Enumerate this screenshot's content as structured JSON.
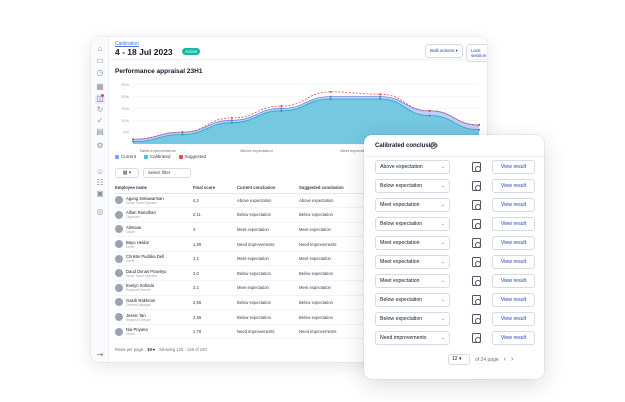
{
  "header": {
    "breadcrumb": "Calibration",
    "date_range": "4 - 18 Jul 2023",
    "status_badge": "Active",
    "bulk_actions_label": "Bulk actions",
    "lock_session_label": "Lock session"
  },
  "rail_icons": [
    "home-icon",
    "inbox-icon",
    "clock-icon",
    "grid-icon",
    "calibration-icon",
    "refresh-icon",
    "check-icon",
    "chart-icon",
    "settings-icon",
    "people-icon",
    "team-icon",
    "docs-icon",
    "support-icon",
    "collapse-icon"
  ],
  "chart_data": {
    "type": "area",
    "title": "Performance appraisal 23H1",
    "categories": [
      "Need improvements",
      "Below expectation",
      "Meet expectation",
      "Above expectation"
    ],
    "y_ticks": [
      "25%",
      "20%",
      "15%",
      "10%",
      "5%"
    ],
    "ylim": [
      0,
      27
    ],
    "x": [
      0,
      0.5,
      1,
      1.5,
      2,
      2.5,
      3,
      3.5
    ],
    "series": [
      {
        "name": "Current",
        "color": "#7aa2f0",
        "values": [
          2,
          5,
          10,
          15,
          20,
          20,
          14,
          8
        ]
      },
      {
        "name": "Calibrated",
        "color": "#45c0d4",
        "values": [
          1,
          4,
          9,
          14,
          19,
          19,
          12,
          6
        ]
      },
      {
        "name": "Suggested",
        "color": "#e5484d",
        "values": [
          2,
          5,
          11,
          16,
          22,
          21,
          14,
          8
        ]
      }
    ],
    "legend": "bottom-left"
  },
  "filters": {
    "grid_button": "▦ ▾",
    "select_placeholder": "Select filter"
  },
  "table": {
    "headers": [
      "Employee name",
      "Final score",
      "Current conclusion",
      "Suggested conclusion",
      "C"
    ],
    "rows": [
      {
        "name": "Agung Setiawarman",
        "role": "Guide Ticket Operator",
        "score": "4,2",
        "current": "Above expectation",
        "suggested": "Above expectation"
      },
      {
        "name": "Alfian Ramdhan",
        "role": "Organizer",
        "score": "2,11",
        "current": "Below expectation",
        "suggested": "Below expectation"
      },
      {
        "name": "Alimoan",
        "role": "Guide",
        "score": "3",
        "current": "Meet expectation",
        "suggested": "Meet expectation"
      },
      {
        "name": "Bayu Heldar",
        "role": "Driver",
        "score": "1,89",
        "current": "Need improvements",
        "suggested": "Need improvements"
      },
      {
        "name": "Christin Pudrika Dell",
        "role": "Guide",
        "score": "3,2",
        "current": "Meet expectation",
        "suggested": "Meet expectation"
      },
      {
        "name": "Daud Dimas Prawiryo",
        "role": "Guide Ticket Operator",
        "score": "2,0",
        "current": "Below expectation",
        "suggested": "Below expectation"
      },
      {
        "name": "Evelyn Sofinda",
        "role": "Regional Director",
        "score": "3,2",
        "current": "Meet expectation",
        "suggested": "Meet expectation"
      },
      {
        "name": "Galuh Rakhnan",
        "role": "General Manager",
        "score": "2,56",
        "current": "Below expectation",
        "suggested": "Below expectation"
      },
      {
        "name": "Jessie Tan",
        "role": "Regional Director",
        "score": "2,66",
        "current": "Below expectation",
        "suggested": "Below expectation"
      },
      {
        "name": "Nia Priyana",
        "role": "Guide",
        "score": "1,78",
        "current": "Need improvements",
        "suggested": "Need improvements"
      }
    ]
  },
  "table_pager": {
    "rows_per_page_label": "Rows per page",
    "rows_per_page_value": "10",
    "showing": "Showing 120 - 120 of 240"
  },
  "panel": {
    "title": "Calibrated conclusion",
    "view_label": "View result",
    "rows": [
      "Above expectation",
      "Below expectation",
      "Meet expectation",
      "Below expectation",
      "Meet expectation",
      "Meet expectation",
      "Meet expectation",
      "Below expectation",
      "Below expectation",
      "Need improvements"
    ],
    "page_value": "12",
    "page_suffix": "of 24 page"
  }
}
